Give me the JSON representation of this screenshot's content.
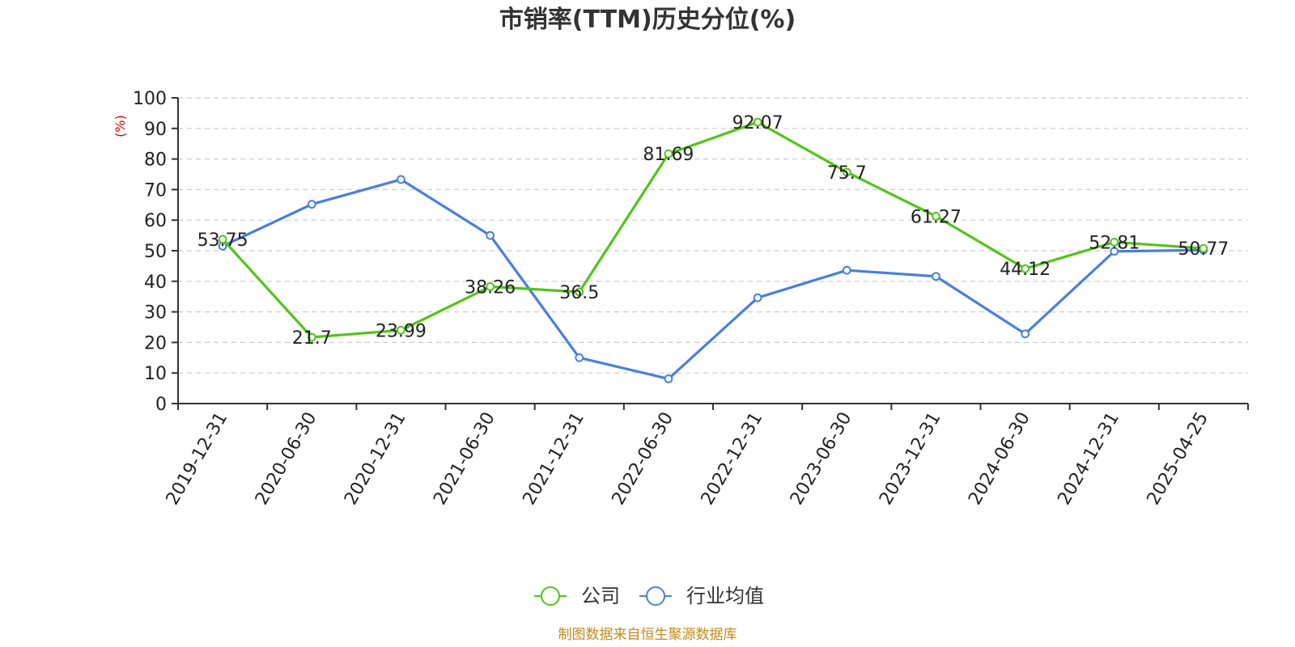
{
  "chart_data": {
    "type": "line",
    "title": "市销率(TTM)历史分位(%)",
    "ylabel": "(%)",
    "source": "制图数据来自恒生聚源数据库",
    "categories": [
      "2019-12-31",
      "2020-06-30",
      "2020-12-31",
      "2021-06-30",
      "2021-12-31",
      "2022-06-30",
      "2022-12-31",
      "2023-06-30",
      "2023-12-31",
      "2024-06-30",
      "2024-12-31",
      "2025-04-25"
    ],
    "ylim": [
      0,
      100
    ],
    "yticks": [
      "0",
      "10",
      "20",
      "30",
      "40",
      "50",
      "60",
      "70",
      "80",
      "90",
      "100"
    ],
    "grid": true,
    "legend_position": "bottom-center",
    "series": [
      {
        "name": "公司",
        "color": "#52c41a",
        "values": [
          53.75,
          21.7,
          23.99,
          38.26,
          36.5,
          81.69,
          92.07,
          75.7,
          61.27,
          44.12,
          52.81,
          50.77
        ],
        "labels": [
          "53.75",
          "21.7",
          "23.99",
          "38.26",
          "36.5",
          "81.69",
          "92.07",
          "75.7",
          "61.27",
          "44.12",
          "52.81",
          "50.77"
        ]
      },
      {
        "name": "行业均值",
        "color": "#4a7fdb",
        "values": [
          51.5,
          65.2,
          73.3,
          55.0,
          15.0,
          8.1,
          34.6,
          43.6,
          41.6,
          22.8,
          49.8,
          50.2
        ]
      }
    ]
  }
}
